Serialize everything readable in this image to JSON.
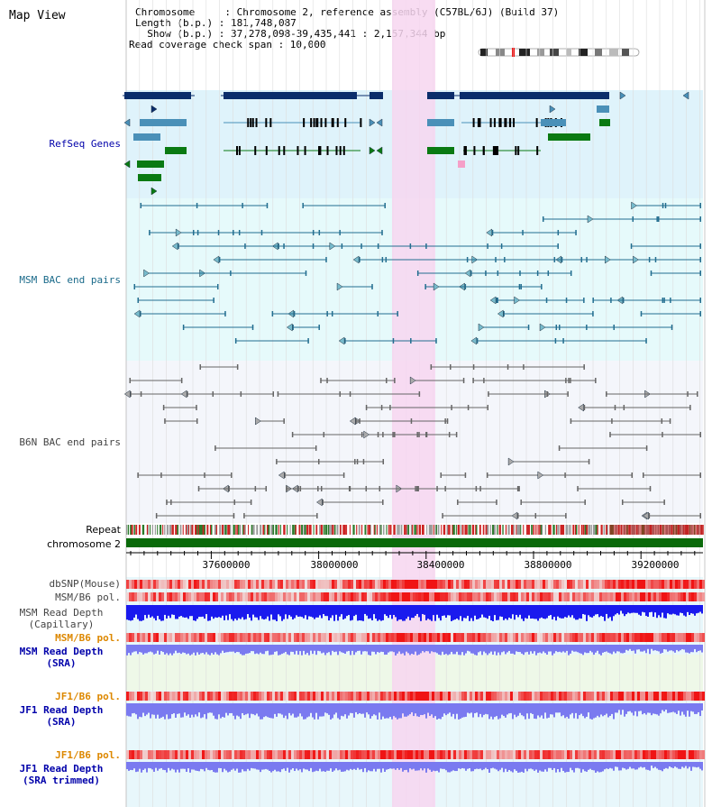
{
  "header": {
    "title": "Map View",
    "chromosome_line": "Chromosome     : Chromosome 2, reference assembly (C57BL/6J) (Build 37)",
    "length_line": "Length (b.p.) : 181,748,087",
    "show_line": "  Show (b.p.) : 37,278,098-39,435,441 : 2,157,344 bp",
    "coverage_line": "Read coverage check span : 10,000"
  },
  "tracks": {
    "refseq": "RefSeq Genes",
    "msm_bac": "MSM BAC end pairs",
    "b6n_bac": "B6N BAC end pairs",
    "repeat": "Repeat",
    "chromosome": "chromosome 2",
    "dbsnp": "dbSNP(Mouse)",
    "msm_b6_pol_1": "MSM/B6 pol.",
    "msm_depth_cap_1": "MSM Read Depth",
    "msm_depth_cap_2": "(Capillary)",
    "msm_b6_pol_2": "MSM/B6 pol.",
    "msm_depth_sra_1": "MSM Read Depth",
    "msm_depth_sra_2": "(SRA)",
    "jf1_b6_pol_1": "JF1/B6 pol.",
    "jf1_depth_sra_1": "JF1 Read Depth",
    "jf1_depth_sra_2": "(SRA)",
    "jf1_b6_pol_2": "JF1/B6 pol.",
    "jf1_depth_trim_1": "JF1 Read Depth",
    "jf1_depth_trim_2": "(SRA trimmed)"
  },
  "axis": {
    "ticks": [
      "37600000",
      "38000000",
      "38400000",
      "38800000",
      "39200000"
    ]
  },
  "colors": {
    "refseq_bg": "#dff3fb",
    "msm_bg": "#e6fafb",
    "b6n_bg": "#f4f6fb",
    "highlight": "#f7d6f0",
    "refseq_blue": "#0b2d6b",
    "refseq_mid": "#4a90b8",
    "refseq_green": "#0a7a12",
    "msm_line": "#236e90",
    "b6n_line": "#666666",
    "chrom_green": "#0a6a0a",
    "depth_blue": "#1a1aee",
    "depth_lav": "#7a7af0",
    "label_blue": "#0000aa",
    "label_teal": "#1a6a8a",
    "label_orange": "#dd8800"
  }
}
